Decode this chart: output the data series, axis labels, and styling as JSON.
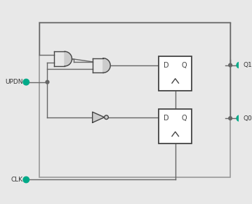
{
  "bg_color": "#e8e8e8",
  "line_color": "#666666",
  "gate_fill": "#cccccc",
  "gate_edge": "#444444",
  "ff_fill": "#ffffff",
  "ff_edge": "#444444",
  "dot_color": "#00aa88",
  "text_color": "#333333",
  "label_updn": "UPDN",
  "label_clk": "CLK",
  "label_q1": "Q1",
  "label_q0": "Q0",
  "lw": 1.0,
  "ff_lw": 1.3
}
